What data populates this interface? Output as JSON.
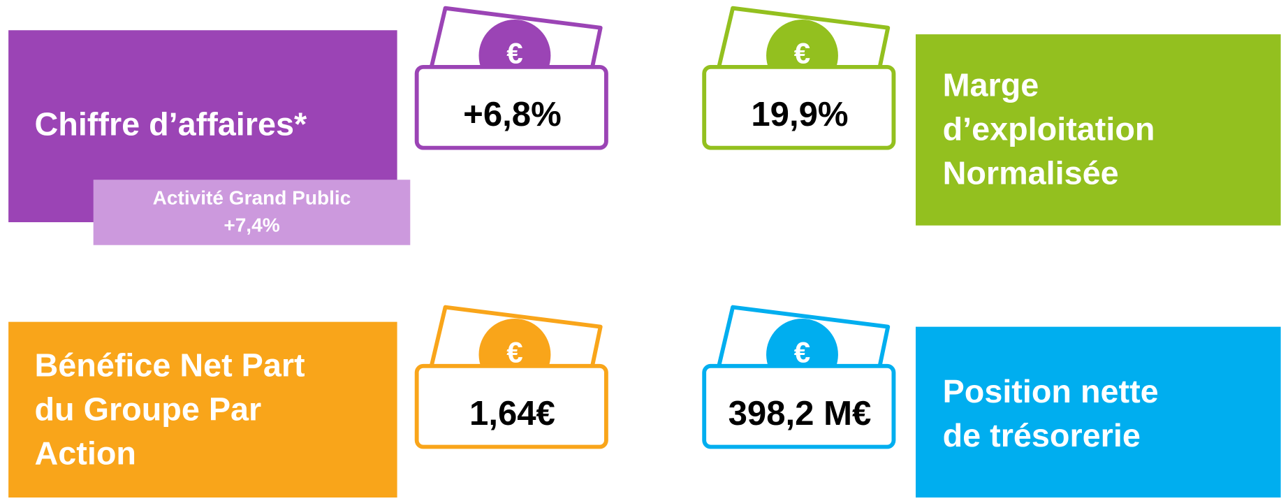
{
  "cards": [
    {
      "title_lines": [
        "Chiffre d’affaires*"
      ],
      "value": "+6,8%",
      "icon_symbol": "€",
      "color": "#9b44b5",
      "sub": {
        "lines": [
          "Activité Grand Public",
          "+7,4%"
        ],
        "color": "#cc99dd"
      }
    },
    {
      "title_lines": [
        "Marge",
        "d’exploitation",
        "Normalisée"
      ],
      "value": "19,9%",
      "icon_symbol": "€",
      "color": "#93c01f"
    },
    {
      "title_lines": [
        "Bénéfice Net Part",
        "du Groupe Par",
        "Action"
      ],
      "value": "1,64€",
      "icon_symbol": "€",
      "color": "#f9a51a"
    },
    {
      "title_lines": [
        "Position nette",
        "de trésorerie"
      ],
      "value": "398,2 M€",
      "icon_symbol": "€",
      "color": "#00aeef"
    }
  ]
}
